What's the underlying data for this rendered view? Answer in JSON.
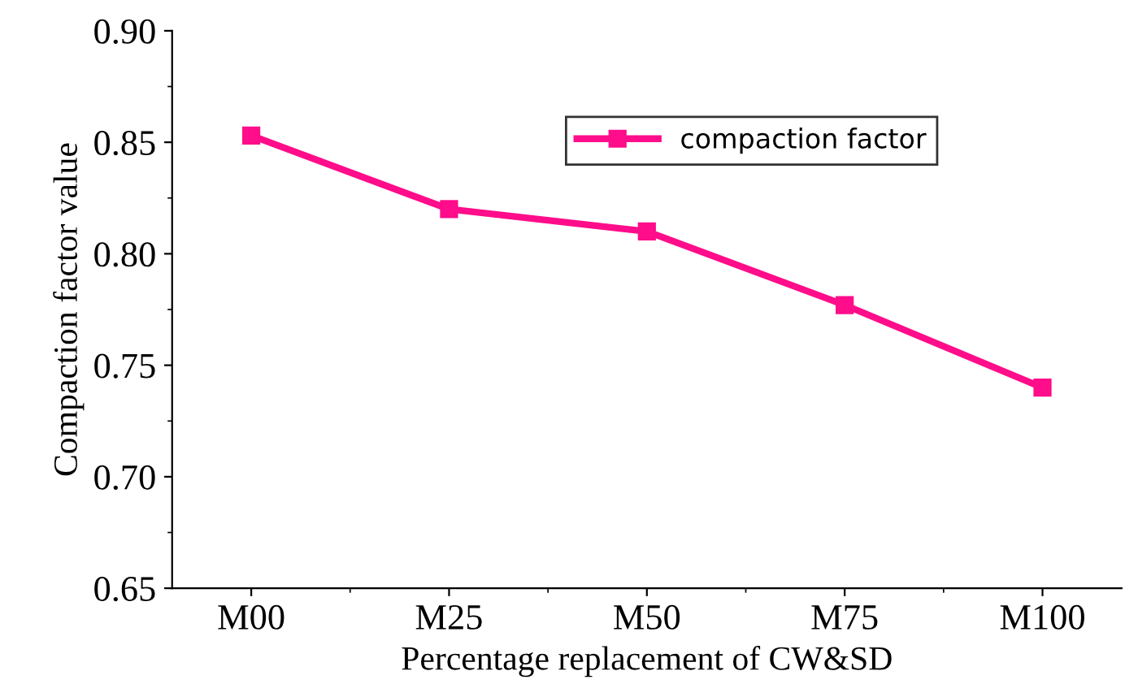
{
  "chart_data": {
    "type": "line",
    "xlabel": "Percentage replacement of CW&SD",
    "ylabel": "Compaction factor value",
    "categories": [
      "M00",
      "M25",
      "M50",
      "M75",
      "M100"
    ],
    "series": [
      {
        "name": "compaction factor",
        "color": "#ff0d8a",
        "values": [
          0.853,
          0.82,
          0.81,
          0.777,
          0.74
        ]
      }
    ],
    "ylim": [
      0.65,
      0.9
    ],
    "yticks": [
      {
        "value": 0.65,
        "label": "0.65"
      },
      {
        "value": 0.7,
        "label": "0.70"
      },
      {
        "value": 0.75,
        "label": "0.75"
      },
      {
        "value": 0.8,
        "label": "0.80"
      },
      {
        "value": 0.85,
        "label": "0.85"
      },
      {
        "value": 0.9,
        "label": "0.90"
      }
    ],
    "marker": "square",
    "line_style": "solid",
    "legend": "top right",
    "grid": false
  }
}
